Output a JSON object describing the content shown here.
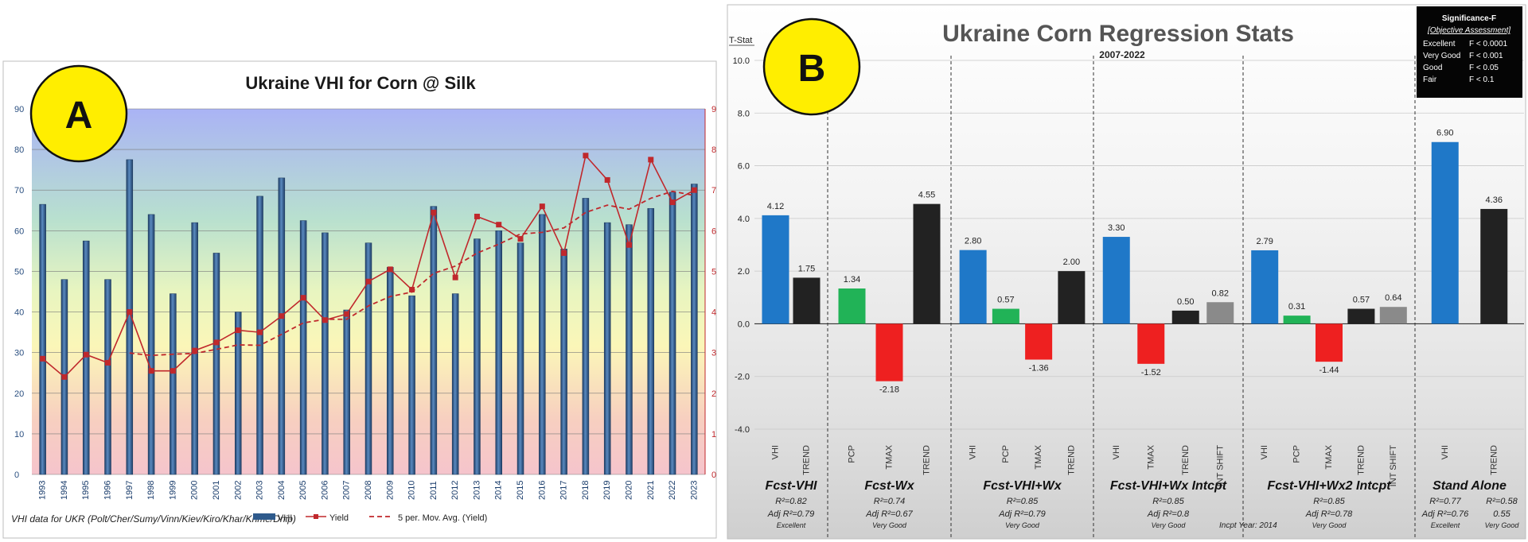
{
  "colors": {
    "vhi_bar": "#2e5a8c",
    "yield_line": "#c0282c",
    "panel_b_blue": "#1f78c8",
    "panel_b_black": "#222222",
    "panel_b_green": "#21b357",
    "panel_b_red": "#ee2020",
    "panel_b_gray": "#8a8a8a",
    "badge_yellow": "#ffee00"
  },
  "chart_data": [
    {
      "type": "bar",
      "title": "Ukraine VHI for Corn @ Silk",
      "badge": "A",
      "xlabel": "",
      "ylabel": "",
      "ylim": [
        0,
        90
      ],
      "y2lim": [
        0,
        9
      ],
      "yticks": [
        "0",
        "10",
        "20",
        "30",
        "40",
        "50",
        "60",
        "70",
        "80",
        "90"
      ],
      "y2ticks": [
        "0",
        "1",
        "2",
        "3",
        "4",
        "5",
        "6",
        "7",
        "8",
        "9"
      ],
      "categories": [
        "1993",
        "1994",
        "1995",
        "1996",
        "1997",
        "1998",
        "1999",
        "2000",
        "2001",
        "2002",
        "2003",
        "2004",
        "2005",
        "2006",
        "2007",
        "2008",
        "2009",
        "2010",
        "2011",
        "2012",
        "2013",
        "2014",
        "2015",
        "2016",
        "2017",
        "2018",
        "2019",
        "2020",
        "2021",
        "2022",
        "2023"
      ],
      "series": [
        {
          "name": "VHI",
          "kind": "bar",
          "axis": "left",
          "values": [
            66.5,
            48,
            57.5,
            48,
            77.5,
            64,
            44.5,
            62,
            54.5,
            40,
            68.5,
            73,
            62.5,
            59.5,
            40.5,
            57,
            51,
            44,
            66,
            44.5,
            58,
            60,
            57,
            64,
            55.5,
            68,
            62,
            61.5,
            65.5,
            69.5,
            71.5
          ]
        },
        {
          "name": "Yield",
          "kind": "line",
          "axis": "right",
          "values": [
            2.85,
            2.4,
            2.95,
            2.75,
            4.0,
            2.55,
            2.55,
            3.05,
            3.25,
            3.55,
            3.5,
            3.9,
            4.35,
            3.8,
            3.95,
            4.75,
            5.05,
            4.55,
            6.45,
            4.85,
            6.35,
            6.15,
            5.8,
            6.6,
            5.45,
            7.85,
            7.25,
            5.65,
            7.75,
            6.7,
            7.0
          ]
        },
        {
          "name": "5 per. Mov. Avg. (Yield)",
          "kind": "dashed-line",
          "axis": "right",
          "values": [
            null,
            null,
            null,
            null,
            2.99,
            2.93,
            2.96,
            2.98,
            3.08,
            3.19,
            3.18,
            3.45,
            3.73,
            3.82,
            3.82,
            4.15,
            4.38,
            4.49,
            4.95,
            5.13,
            5.45,
            5.67,
            5.92,
            5.96,
            6.07,
            6.45,
            6.63,
            6.53,
            6.8,
            6.97,
            6.87
          ]
        }
      ],
      "legend": [
        "VHI",
        "Yield",
        "5 per. Mov. Avg. (Yield)"
      ],
      "legend_position": "bottom-right",
      "footnote": "VHI data for UKR (Polt/Cher/Sumy/Vinn/Kiev/Kiro/Khar/Khme/Dnip)"
    },
    {
      "type": "bar",
      "title": "Ukraine Corn Regression Stats",
      "badge": "B",
      "subtitle": "2007-2022",
      "ylabel": "T-Stat",
      "ylim": [
        -4.0,
        10.0
      ],
      "yticks": [
        "10.0",
        "8.0",
        "6.0",
        "4.0",
        "2.0",
        "0.0",
        "-2.0",
        "-4.0"
      ],
      "groups": [
        {
          "name": "Fcst-VHI",
          "r2": "R²=0.82",
          "adj": "Adj R²=0.79",
          "rating": "Excellent",
          "bars": [
            {
              "label": "VHI",
              "value": 4.12,
              "text": "4.12",
              "color": "blue"
            },
            {
              "label": "TREND",
              "value": 1.75,
              "text": "1.75",
              "color": "black"
            }
          ]
        },
        {
          "name": "Fcst-Wx",
          "r2": "R²=0.74",
          "adj": "Adj R²=0.67",
          "rating": "Very Good",
          "bars": [
            {
              "label": "PCP",
              "value": 1.34,
              "text": "1.34",
              "color": "green"
            },
            {
              "label": "TMAX",
              "value": -2.18,
              "text": "-2.18",
              "color": "red"
            },
            {
              "label": "TREND",
              "value": 4.55,
              "text": "4.55",
              "color": "black"
            }
          ]
        },
        {
          "name": "Fcst-VHI+Wx",
          "r2": "R²=0.85",
          "adj": "Adj R²=0.79",
          "rating": "Very Good",
          "bars": [
            {
              "label": "VHI",
              "value": 2.8,
              "text": "2.80",
              "color": "blue"
            },
            {
              "label": "PCP",
              "value": 0.57,
              "text": "0.57",
              "color": "green"
            },
            {
              "label": "TMAX",
              "value": -1.36,
              "text": "-1.36",
              "color": "red"
            },
            {
              "label": "TREND",
              "value": 2.0,
              "text": "2.00",
              "color": "black"
            }
          ]
        },
        {
          "name": "Fcst-VHI+Wx Intcpt",
          "r2": "R²=0.85",
          "adj": "Adj R²=0.8",
          "rating": "Very Good",
          "bars": [
            {
              "label": "VHI",
              "value": 3.3,
              "text": "3.30",
              "color": "blue"
            },
            {
              "label": "TMAX",
              "value": -1.52,
              "text": "-1.52",
              "color": "red"
            },
            {
              "label": "TREND",
              "value": 0.5,
              "text": "0.50",
              "color": "black"
            },
            {
              "label": "INT SHIFT",
              "value": 0.82,
              "text": "0.82",
              "color": "gray"
            }
          ]
        },
        {
          "name": "Fcst-VHI+Wx2 Intcpt",
          "r2": "R²=0.85",
          "adj": "Adj R²=0.78",
          "rating": "Very Good",
          "bars": [
            {
              "label": "VHI",
              "value": 2.79,
              "text": "2.79",
              "color": "blue"
            },
            {
              "label": "PCP",
              "value": 0.31,
              "text": "0.31",
              "color": "green"
            },
            {
              "label": "TMAX",
              "value": -1.44,
              "text": "-1.44",
              "color": "red"
            },
            {
              "label": "TREND",
              "value": 0.57,
              "text": "0.57",
              "color": "black"
            },
            {
              "label": "INT SHIFT",
              "value": 0.64,
              "text": "0.64",
              "color": "gray"
            }
          ]
        },
        {
          "name": "Stand Alone",
          "r2": "R²=0.77",
          "adj": "Adj R²=0.76",
          "rating": "Excellent",
          "r2b": "R²=0.58",
          "adjb": "0.55",
          "ratingb": "Very Good",
          "bars": [
            {
              "label": "VHI",
              "value": 6.9,
              "text": "6.90",
              "color": "blue"
            },
            {
              "label": "TREND",
              "value": 4.36,
              "text": "4.36",
              "color": "black"
            }
          ]
        }
      ],
      "incpt_note": "Incpt Year: 2014",
      "significance_box": {
        "title": "Significance-F",
        "subtitle": "[Objective Assessment]",
        "rows": [
          {
            "label": "Excellent",
            "value": "F < 0.0001"
          },
          {
            "label": "Very Good",
            "value": "F < 0.001"
          },
          {
            "label": "Good",
            "value": "F < 0.05"
          },
          {
            "label": "Fair",
            "value": "F < 0.1"
          }
        ]
      }
    }
  ]
}
